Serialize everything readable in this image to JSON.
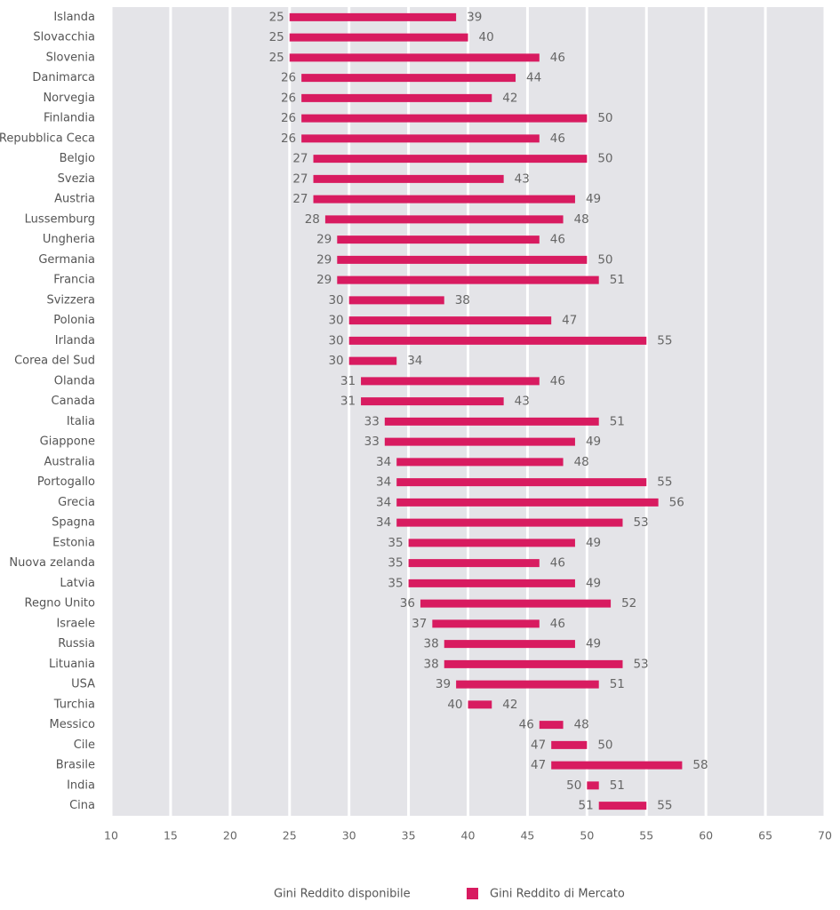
{
  "chart_data": {
    "type": "range-bar",
    "orientation": "horizontal",
    "categories": [
      "Islanda",
      "Slovacchia",
      "Slovenia",
      "Danimarca",
      "Norvegia",
      "Finlandia",
      "Repubblica Ceca",
      "Belgio",
      "Svezia",
      "Austria",
      "Lussemburg",
      "Ungheria",
      "Germania",
      "Francia",
      "Svizzera",
      "Polonia",
      "Irlanda",
      "Corea del Sud",
      "Olanda",
      "Canada",
      "Italia",
      "Giappone",
      "Australia",
      "Portogallo",
      "Grecia",
      "Spagna",
      "Estonia",
      "Nuova zelanda",
      "Latvia",
      "Regno Unito",
      "Israele",
      "Russia",
      "Lituania",
      "USA",
      "Turchia",
      "Messico",
      "Cile",
      "Brasile",
      "India",
      "Cina"
    ],
    "series": [
      {
        "name": "Gini Reddito disponibile",
        "values": [
          25,
          25,
          25,
          26,
          26,
          26,
          26,
          27,
          27,
          27,
          28,
          29,
          29,
          29,
          30,
          30,
          30,
          30,
          31,
          31,
          33,
          33,
          34,
          34,
          34,
          34,
          35,
          35,
          35,
          36,
          37,
          38,
          38,
          39,
          40,
          46,
          47,
          47,
          50,
          51
        ]
      },
      {
        "name": "Gini Reddito di Mercato",
        "color": "#d81b60",
        "values": [
          39,
          40,
          46,
          44,
          42,
          50,
          46,
          50,
          43,
          49,
          48,
          46,
          50,
          51,
          38,
          47,
          55,
          34,
          46,
          43,
          51,
          49,
          48,
          55,
          56,
          53,
          49,
          46,
          49,
          52,
          46,
          49,
          53,
          51,
          42,
          48,
          50,
          58,
          51,
          55
        ]
      }
    ],
    "xlim": [
      10,
      70
    ],
    "xticks": [
      10,
      15,
      20,
      25,
      30,
      35,
      40,
      45,
      50,
      55,
      60,
      65,
      70
    ],
    "grid": true
  }
}
